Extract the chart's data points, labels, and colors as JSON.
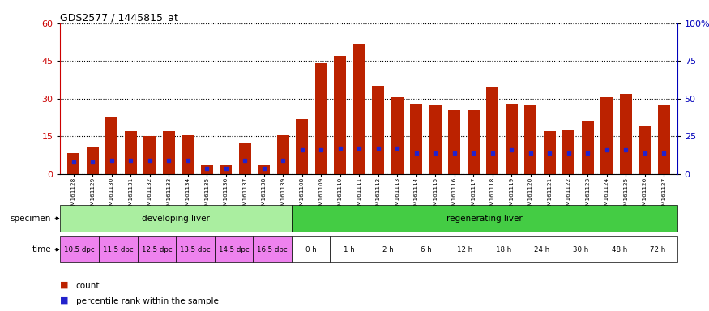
{
  "title": "GDS2577 / 1445815_at",
  "samples": [
    "GSM161128",
    "GSM161129",
    "GSM161130",
    "GSM161131",
    "GSM161132",
    "GSM161133",
    "GSM161134",
    "GSM161135",
    "GSM161136",
    "GSM161137",
    "GSM161138",
    "GSM161139",
    "GSM161108",
    "GSM161109",
    "GSM161110",
    "GSM161111",
    "GSM161112",
    "GSM161113",
    "GSM161114",
    "GSM161115",
    "GSM161116",
    "GSM161117",
    "GSM161118",
    "GSM161119",
    "GSM161120",
    "GSM161121",
    "GSM161122",
    "GSM161123",
    "GSM161124",
    "GSM161125",
    "GSM161126",
    "GSM161127"
  ],
  "count_values": [
    8.5,
    11.0,
    22.5,
    17.0,
    15.0,
    17.0,
    15.5,
    3.5,
    3.5,
    12.5,
    3.5,
    15.5,
    22.0,
    44.0,
    47.0,
    52.0,
    35.0,
    30.5,
    28.0,
    27.5,
    25.5,
    25.5,
    34.5,
    28.0,
    27.5,
    17.0,
    17.5,
    21.0,
    30.5,
    32.0,
    19.0,
    27.5
  ],
  "percentile_values": [
    8,
    8,
    9,
    9,
    9,
    9,
    9,
    4,
    4,
    9,
    4,
    9,
    16,
    16,
    17,
    17,
    17,
    17,
    14,
    14,
    14,
    14,
    14,
    16,
    14,
    14,
    14,
    14,
    16,
    16,
    14,
    14
  ],
  "specimen_groups": [
    {
      "label": "developing liver",
      "color": "#AAEEA0",
      "start": 0,
      "end": 12
    },
    {
      "label": "regenerating liver",
      "color": "#44CC44",
      "start": 12,
      "end": 32
    }
  ],
  "time_groups": [
    {
      "label": "10.5 dpc",
      "start": 0,
      "end": 2,
      "color": "#EE82EE"
    },
    {
      "label": "11.5 dpc",
      "start": 2,
      "end": 4,
      "color": "#EE82EE"
    },
    {
      "label": "12.5 dpc",
      "start": 4,
      "end": 6,
      "color": "#EE82EE"
    },
    {
      "label": "13.5 dpc",
      "start": 6,
      "end": 8,
      "color": "#EE82EE"
    },
    {
      "label": "14.5 dpc",
      "start": 8,
      "end": 10,
      "color": "#EE82EE"
    },
    {
      "label": "16.5 dpc",
      "start": 10,
      "end": 12,
      "color": "#EE82EE"
    },
    {
      "label": "0 h",
      "start": 12,
      "end": 14,
      "color": "#FFFFFF"
    },
    {
      "label": "1 h",
      "start": 14,
      "end": 16,
      "color": "#FFFFFF"
    },
    {
      "label": "2 h",
      "start": 16,
      "end": 18,
      "color": "#FFFFFF"
    },
    {
      "label": "6 h",
      "start": 18,
      "end": 20,
      "color": "#FFFFFF"
    },
    {
      "label": "12 h",
      "start": 20,
      "end": 22,
      "color": "#FFFFFF"
    },
    {
      "label": "18 h",
      "start": 22,
      "end": 24,
      "color": "#FFFFFF"
    },
    {
      "label": "24 h",
      "start": 24,
      "end": 26,
      "color": "#FFFFFF"
    },
    {
      "label": "30 h",
      "start": 26,
      "end": 28,
      "color": "#FFFFFF"
    },
    {
      "label": "48 h",
      "start": 28,
      "end": 30,
      "color": "#FFFFFF"
    },
    {
      "label": "72 h",
      "start": 30,
      "end": 32,
      "color": "#FFFFFF"
    }
  ],
  "ylim_left": [
    0,
    60
  ],
  "ylim_right": [
    0,
    100
  ],
  "yticks_left": [
    0,
    15,
    30,
    45,
    60
  ],
  "yticks_right": [
    0,
    25,
    50,
    75,
    100
  ],
  "bar_color": "#BB2200",
  "percentile_color": "#2222CC",
  "bg_color": "#FFFFFF",
  "plot_bg": "#FFFFFF",
  "left_axis_color": "#CC0000",
  "right_axis_color": "#0000BB",
  "label_bg": "#D0D0D0"
}
